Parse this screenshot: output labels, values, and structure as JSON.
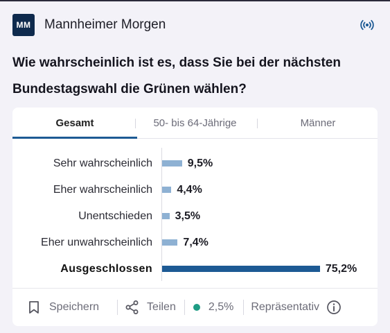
{
  "header": {
    "logo_text": "MM",
    "publisher": "Mannheimer Morgen",
    "live_icon": "broadcast-icon"
  },
  "question": {
    "line1": "Wie wahrscheinlich ist es, dass Sie bei der nächsten",
    "line2": "Bundestagswahl die Grünen wählen?"
  },
  "tabs": [
    {
      "label": "Gesamt",
      "active": true
    },
    {
      "label": "50- bis 64-Jährige",
      "active": false
    },
    {
      "label": "Männer",
      "active": false
    }
  ],
  "colors": {
    "bar": "#8eb1d3",
    "bar_highlight": "#1d5a94",
    "status_dot": "#1f9c84"
  },
  "results": [
    {
      "label": "Sehr wahrscheinlich",
      "value": 9.5,
      "value_text": "9,5%"
    },
    {
      "label": "Eher wahrscheinlich",
      "value": 4.4,
      "value_text": "4,4%"
    },
    {
      "label": "Unentschieden",
      "value": 3.5,
      "value_text": "3,5%"
    },
    {
      "label": "Eher unwahrscheinlich",
      "value": 7.4,
      "value_text": "7,4%"
    },
    {
      "label": "Ausgeschlossen",
      "value": 75.2,
      "value_text": "75,2%",
      "highlight": true
    }
  ],
  "footer": {
    "save_label": "Speichern",
    "share_label": "Teilen",
    "error_margin": "2,5%",
    "representative_label": "Repräsentativ"
  }
}
